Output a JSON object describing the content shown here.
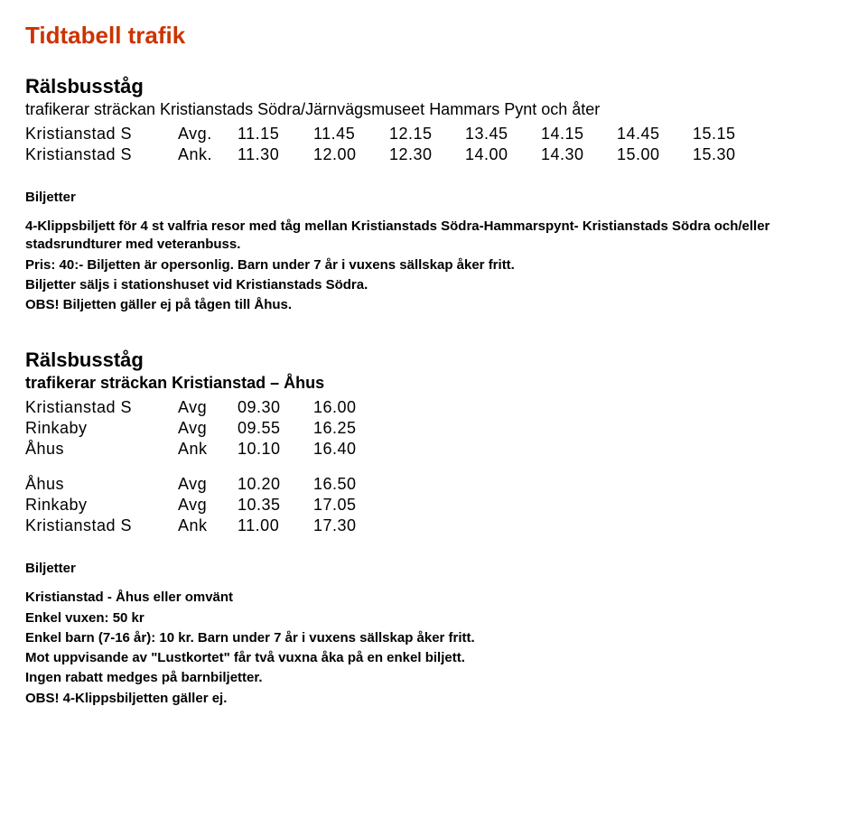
{
  "title": "Tidtabell trafik",
  "section1": {
    "heading": "Rälsbusståg",
    "route": "trafikerar sträckan Kristianstads Södra/Järnvägsmuseet Hammars Pynt och åter",
    "rows": [
      {
        "station": "Kristianstad S",
        "lbl": "Avg.",
        "times": [
          "11.15",
          "11.45",
          "12.15",
          "13.45",
          "14.15",
          "14.45",
          "15.15"
        ]
      },
      {
        "station": "Kristianstad S",
        "lbl": "Ank.",
        "times": [
          "11.30",
          "12.00",
          "12.30",
          "14.00",
          "14.30",
          "15.00",
          "15.30"
        ]
      }
    ],
    "tickets_label": "Biljetter",
    "p1": "4-Klippsbiljett för 4 st valfria resor med tåg mellan Kristianstads Södra-Hammarspynt- Kristianstads Södra och/eller stadsrundturer med veteranbuss.",
    "p2": "Pris: 40:- Biljetten är opersonlig. Barn under 7 år i vuxens sällskap åker fritt.",
    "p3": "Biljetter säljs i stationshuset vid Kristianstads Södra.",
    "p4": "OBS! Biljetten gäller ej på tågen till Åhus."
  },
  "section2": {
    "heading": "Rälsbusståg",
    "route": "trafikerar sträckan Kristianstad – Åhus",
    "rowsA": [
      {
        "station": "Kristianstad S",
        "lbl": "Avg",
        "times": [
          "09.30",
          "16.00"
        ]
      },
      {
        "station": "Rinkaby",
        "lbl": "Avg",
        "times": [
          "09.55",
          "16.25"
        ]
      },
      {
        "station": "Åhus",
        "lbl": "Ank",
        "times": [
          "10.10",
          "16.40"
        ]
      }
    ],
    "rowsB": [
      {
        "station": "Åhus",
        "lbl": "Avg",
        "times": [
          "10.20",
          "16.50"
        ]
      },
      {
        "station": "Rinkaby",
        "lbl": "Avg",
        "times": [
          "10.35",
          "17.05"
        ]
      },
      {
        "station": "Kristianstad S",
        "lbl": "Ank",
        "times": [
          "11.00",
          "17.30"
        ]
      }
    ],
    "tickets_label": "Biljetter",
    "p1": "Kristianstad - Åhus eller omvänt",
    "p2": "Enkel vuxen: 50 kr",
    "p3": "Enkel barn (7-16 år): 10 kr. Barn under 7 år i vuxens sällskap åker fritt.",
    "p4": "Mot uppvisande av \"Lustkortet\" får två vuxna åka på en enkel biljett.",
    "p5": "Ingen rabatt medges på barnbiljetter.",
    "p6": "OBS! 4-Klippsbiljetten gäller ej."
  }
}
